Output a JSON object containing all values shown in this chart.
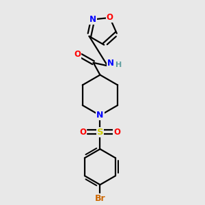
{
  "bg_color": "#e8e8e8",
  "bond_color": "#000000",
  "N_color": "#0000ff",
  "O_color": "#ff0000",
  "S_color": "#cccc00",
  "Br_color": "#cc6600",
  "H_color": "#5f9ea0",
  "line_width": 1.6,
  "figsize": [
    3.0,
    3.0
  ],
  "dpi": 100,
  "xlim": [
    0,
    10
  ],
  "ylim": [
    0,
    10
  ]
}
